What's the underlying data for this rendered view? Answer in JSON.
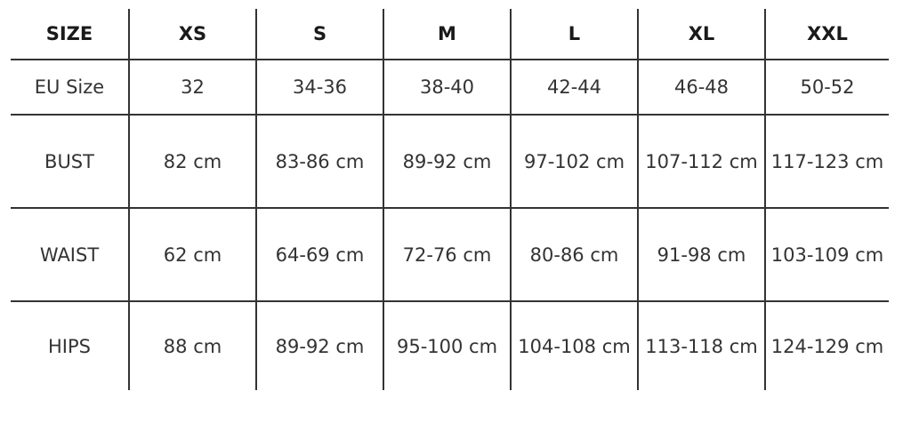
{
  "header": [
    "SIZE",
    "XS",
    "S",
    "M",
    "L",
    "XL",
    "XXL"
  ],
  "rows": [
    {
      "label": "EU Size",
      "values": [
        "32",
        "34-36",
        "38-40",
        "42-44",
        "46-48",
        "50-52"
      ]
    },
    {
      "label": "BUST",
      "values": [
        "82 cm",
        "83-86 cm",
        "89-92 cm",
        "97-102 cm",
        "107-112 cm",
        "117-123 cm"
      ]
    },
    {
      "label": "WAIST",
      "values": [
        "62 cm",
        "64-69 cm",
        "72-76 cm",
        "80-86 cm",
        "91-98 cm",
        "103-109 cm"
      ]
    },
    {
      "label": "HIPS",
      "values": [
        "88 cm",
        "89-92 cm",
        "95-100 cm",
        "104-108 cm",
        "113-118 cm",
        "124-129 cm"
      ]
    }
  ]
}
